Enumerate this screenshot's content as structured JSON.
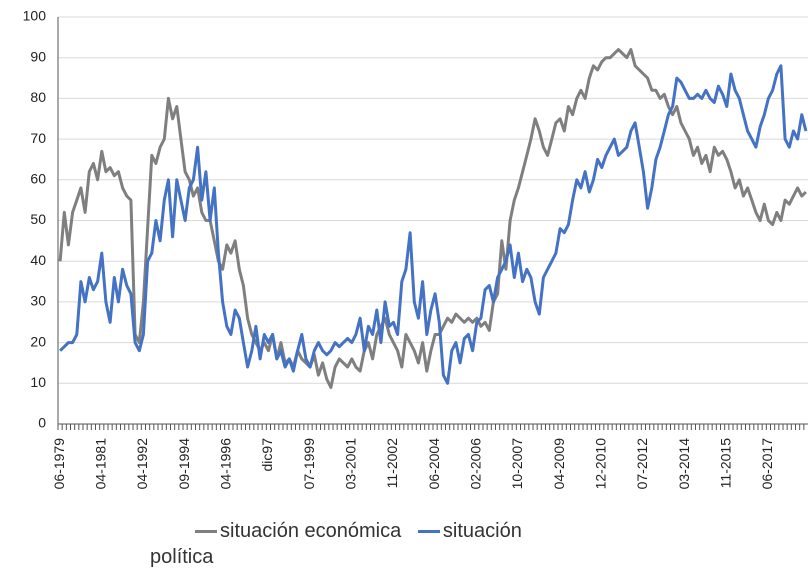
{
  "chart_data": {
    "type": "line",
    "categories": [
      "06-1979",
      null,
      null,
      null,
      null,
      null,
      null,
      null,
      null,
      null,
      "04-1981",
      null,
      null,
      null,
      null,
      null,
      null,
      null,
      null,
      null,
      "04-1992",
      null,
      null,
      null,
      null,
      null,
      null,
      null,
      null,
      null,
      "09-1994",
      null,
      null,
      null,
      null,
      null,
      null,
      null,
      null,
      null,
      "04-1996",
      null,
      null,
      null,
      null,
      null,
      null,
      null,
      null,
      null,
      "dic97",
      null,
      null,
      null,
      null,
      null,
      null,
      null,
      null,
      null,
      "07-1999",
      null,
      null,
      null,
      null,
      null,
      null,
      null,
      null,
      null,
      "03-2001",
      null,
      null,
      null,
      null,
      null,
      null,
      null,
      null,
      null,
      "11-2002",
      null,
      null,
      null,
      null,
      null,
      null,
      null,
      null,
      null,
      "06-2004",
      null,
      null,
      null,
      null,
      null,
      null,
      null,
      null,
      null,
      "02-2006",
      null,
      null,
      null,
      null,
      null,
      null,
      null,
      null,
      null,
      "10-2007",
      null,
      null,
      null,
      null,
      null,
      null,
      null,
      null,
      null,
      "04-2009",
      null,
      null,
      null,
      null,
      null,
      null,
      null,
      null,
      null,
      "12-2010",
      null,
      null,
      null,
      null,
      null,
      null,
      null,
      null,
      null,
      "07-2012",
      null,
      null,
      null,
      null,
      null,
      null,
      null,
      null,
      null,
      "03-2014",
      null,
      null,
      null,
      null,
      null,
      null,
      null,
      null,
      null,
      "11-2015",
      null,
      null,
      null,
      null,
      null,
      null,
      null,
      null,
      null,
      "06-2017",
      null,
      null,
      null,
      null,
      null,
      null,
      null,
      null,
      null
    ],
    "series": [
      {
        "name": "situación económica",
        "color": "#7f7f7f",
        "values": [
          40,
          52,
          44,
          52,
          55,
          58,
          52,
          62,
          64,
          60,
          67,
          62,
          63,
          61,
          62,
          58,
          56,
          55,
          22,
          20,
          30,
          48,
          66,
          64,
          68,
          70,
          80,
          75,
          78,
          70,
          62,
          60,
          56,
          58,
          52,
          50,
          50,
          45,
          40,
          38,
          44,
          42,
          45,
          38,
          34,
          26,
          22,
          20,
          18,
          20,
          18,
          22,
          16,
          20,
          15,
          16,
          14,
          18,
          16,
          15,
          14,
          17,
          12,
          15,
          11,
          9,
          14,
          16,
          15,
          14,
          16,
          14,
          13,
          18,
          20,
          16,
          22,
          24,
          26,
          22,
          20,
          18,
          14,
          22,
          20,
          18,
          15,
          20,
          13,
          18,
          22,
          22,
          24,
          26,
          25,
          27,
          26,
          25,
          26,
          25,
          26,
          24,
          25,
          23,
          30,
          32,
          45,
          38,
          50,
          55,
          58,
          62,
          66,
          70,
          75,
          72,
          68,
          66,
          70,
          74,
          75,
          72,
          78,
          76,
          80,
          82,
          80,
          85,
          88,
          87,
          89,
          90,
          90,
          91,
          92,
          91,
          90,
          92,
          88,
          87,
          86,
          85,
          82,
          82,
          80,
          81,
          78,
          76,
          78,
          74,
          72,
          70,
          66,
          68,
          64,
          66,
          62,
          68,
          66,
          67,
          65,
          62,
          58,
          60,
          56,
          58,
          55,
          52,
          50,
          54,
          50,
          49,
          52,
          50,
          55,
          54,
          56,
          58,
          56,
          57
        ]
      },
      {
        "name": "situación política",
        "color": "#4472c4",
        "values": [
          18,
          19,
          20,
          20,
          22,
          35,
          30,
          36,
          33,
          35,
          42,
          30,
          25,
          36,
          30,
          38,
          34,
          32,
          20,
          18,
          22,
          40,
          42,
          50,
          45,
          55,
          60,
          46,
          60,
          55,
          50,
          58,
          60,
          68,
          55,
          62,
          50,
          58,
          42,
          30,
          24,
          22,
          28,
          26,
          20,
          14,
          18,
          24,
          16,
          22,
          20,
          22,
          16,
          18,
          14,
          16,
          13,
          18,
          22,
          16,
          14,
          18,
          20,
          18,
          17,
          18,
          20,
          19,
          20,
          21,
          20,
          22,
          26,
          18,
          24,
          22,
          28,
          20,
          30,
          24,
          25,
          22,
          35,
          38,
          47,
          30,
          26,
          35,
          22,
          28,
          32,
          25,
          12,
          10,
          18,
          20,
          15,
          21,
          22,
          18,
          25,
          26,
          33,
          34,
          30,
          36,
          38,
          40,
          44,
          36,
          42,
          35,
          38,
          36,
          30,
          27,
          36,
          38,
          40,
          42,
          48,
          47,
          49,
          55,
          60,
          58,
          62,
          57,
          60,
          65,
          63,
          66,
          68,
          70,
          66,
          67,
          68,
          72,
          74,
          68,
          62,
          53,
          58,
          65,
          68,
          72,
          76,
          78,
          85,
          84,
          82,
          80,
          80,
          81,
          80,
          82,
          80,
          79,
          83,
          81,
          78,
          86,
          82,
          80,
          76,
          72,
          70,
          68,
          73,
          76,
          80,
          82,
          86,
          88,
          70,
          68,
          72,
          70,
          76,
          72
        ]
      }
    ],
    "ylim": [
      0,
      100
    ],
    "yticks": [
      0,
      10,
      20,
      30,
      40,
      50,
      60,
      70,
      80,
      90,
      100
    ],
    "grid": true
  }
}
